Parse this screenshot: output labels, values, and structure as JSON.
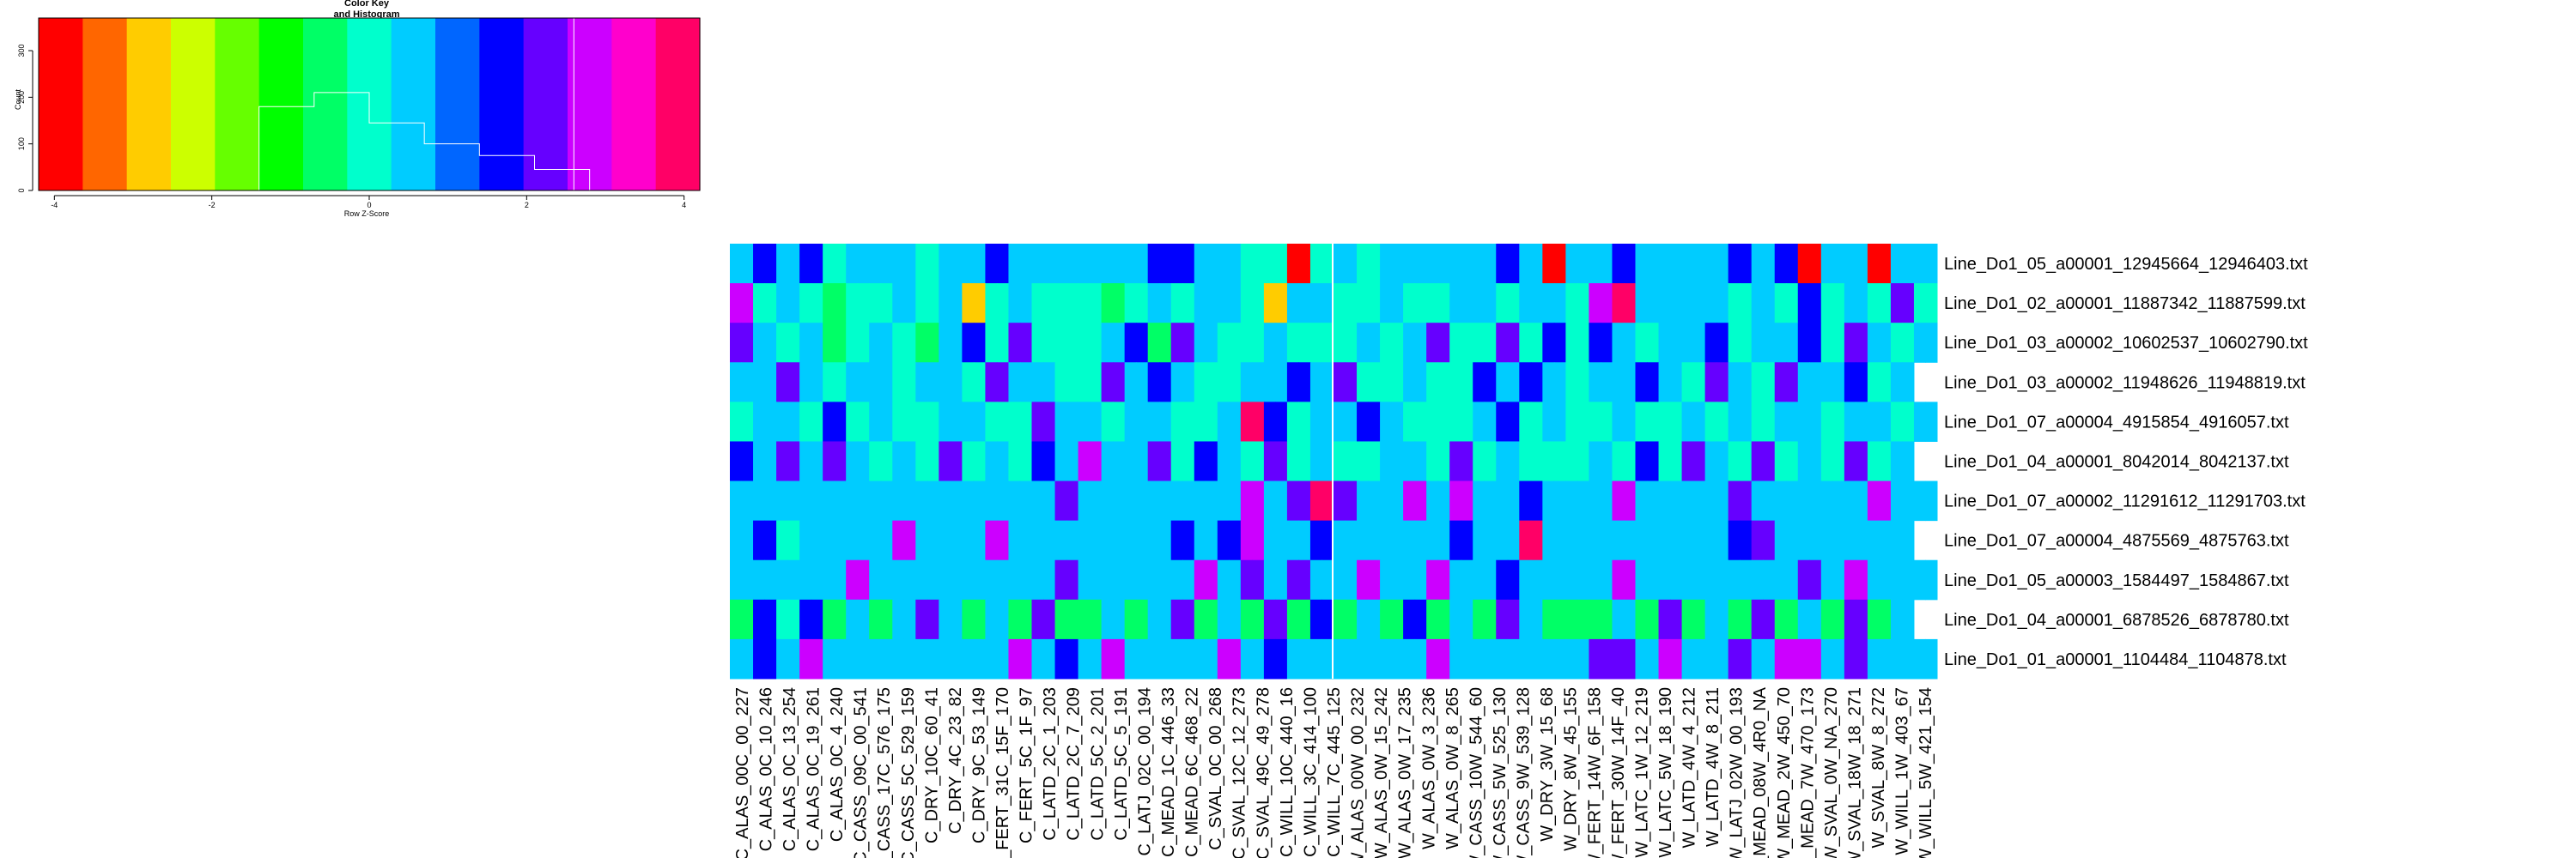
{
  "color_key": {
    "title_line1": "Color Key",
    "title_line2": "and Histogram",
    "xlabel": "Row Z-Score",
    "ylabel": "Count",
    "x_ticks": [
      "-4",
      "-2",
      "0",
      "2",
      "4"
    ],
    "y_ticks": [
      "0",
      "100",
      "200",
      "300"
    ],
    "x_range": [
      -4.2,
      4.2
    ],
    "y_range": [
      0,
      370
    ],
    "histogram": {
      "breaks": [
        -1.4,
        -0.7,
        0,
        0.7,
        1.4,
        2.1,
        2.8
      ],
      "counts": [
        180,
        210,
        145,
        100,
        75,
        45
      ]
    },
    "palette": [
      "#ff0000",
      "#ff6600",
      "#ffcc00",
      "#ccff00",
      "#66ff00",
      "#00ff00",
      "#00ff66",
      "#00ffcc",
      "#00ccff",
      "#0066ff",
      "#0000ff",
      "#6600ff",
      "#cc00ff",
      "#ff00cc",
      "#ff0066"
    ],
    "annotation": ""
  },
  "chart_data": {
    "type": "heatmap",
    "title": "",
    "xlabel": "",
    "ylabel": "",
    "value_range": [
      -4,
      4
    ],
    "rows": [
      "Line_Do1_05_a00001_12945664_12946403.txt",
      "Line_Do1_02_a00001_11887342_11887599.txt",
      "Line_Do1_03_a00002_10602537_10602790.txt",
      "Line_Do1_03_a00002_11948626_11948819.txt",
      "Line_Do1_07_a00004_4915854_4916057.txt",
      "Line_Do1_04_a00001_8042014_8042137.txt",
      "Line_Do1_07_a00002_11291612_11291703.txt",
      "Line_Do1_07_a00004_4875569_4875763.txt",
      "Line_Do1_05_a00003_1584497_1584867.txt",
      "Line_Do1_04_a00001_6878526_6878780.txt",
      "Line_Do1_01_a00001_1104484_1104878.txt"
    ],
    "col_labels": [
      "C_ALAS_00C_00_227",
      "C_ALAS_0C_10_246",
      "C_ALAS_0C_13_254",
      "C_ALAS_0C_19_261",
      "C_ALAS_0C_4_240",
      "C_CASS_09C_00_541",
      "C_CASS_17C_576_175",
      "C_CASS_5C_529_159",
      "C_DRY_10C_60_41",
      "C_DRY_4C_23_82",
      "C_DRY_9C_53_149",
      "C_FERT_31C_15F_170",
      "C_FERT_5C_1F_97",
      "C_LATD_2C_1_203",
      "C_LATD_2C_7_209",
      "C_LATD_5C_2_201",
      "C_LATD_5C_5_191",
      "C_LATJ_02C_00_194",
      "C_MEAD_1C_446_33",
      "C_MEAD_6C_468_22",
      "C_SVAL_0C_00_268",
      "C_SVAL_12C_12_273",
      "C_SVAL_49C_49_278",
      "C_WILL_10C_440_16",
      "C_WILL_3C_414_100",
      "C_WILL_7C_445_125",
      "W_ALAS_00W_00_232",
      "W_ALAS_0W_15_242",
      "W_ALAS_0W_17_235",
      "W_ALAS_0W_3_236",
      "W_ALAS_0W_8_265",
      "W_CASS_10W_544_60",
      "W_CASS_5W_525_130",
      "W_CASS_9W_539_128",
      "W_DRY_3W_15_68",
      "W_DRY_8W_45_155",
      "W_FERT_14W_6F_158",
      "W_FERT_30W_14F_40",
      "W_LATC_1W_12_219",
      "W_LATC_5W_18_190",
      "W_LATD_4W_4_212",
      "W_LATD_4W_8_211",
      "W_LATJ_02W_00_193",
      "W_MEAD_08W_4R0_NA",
      "W_MEAD_2W_450_70",
      "W_MEAD_7W_470_173",
      "W_SVAL_0W_NA_270",
      "W_SVAL_18W_18_271",
      "W_SVAL_8W_8_272",
      "W_WILL_1W_403_67",
      "W_WILL_5W_421_154"
    ],
    "n_cells_per_row": 104,
    "values": [
      [
        0.7,
        0.7,
        1.4,
        1.4,
        0.7,
        0.7,
        1.4,
        1.4,
        0,
        0,
        0.7,
        0.7,
        0.7,
        0.7,
        0.7,
        0.7,
        0,
        0,
        0.7,
        0.7,
        0.7,
        0.7,
        1.4,
        1.4,
        0.7,
        0.7,
        0.7,
        0.7,
        0.7,
        0.7,
        0.7,
        0.7,
        0.7,
        0.7,
        0.7,
        0.7,
        1.4,
        1.4,
        1.4,
        1.4,
        0.7,
        0.7,
        0.7,
        0.7,
        0,
        0,
        0,
        0,
        -4,
        -4,
        0,
        0,
        0.7,
        0.7,
        0,
        0,
        0.7,
        0.7,
        0.7,
        0.7,
        0.7,
        0.7,
        0.7,
        0.7,
        0.7,
        0.7,
        1.4,
        1.4,
        0.7,
        0.7,
        -4,
        -4,
        0.7,
        0.7,
        0.7,
        0.7,
        1.4,
        1.4,
        0.7,
        0.7,
        0.7,
        0.7,
        0.7,
        0.7,
        0.7,
        0.7,
        1.4,
        1.4,
        0.7,
        0.7,
        1.4,
        1.4,
        -4,
        -4,
        0.7,
        0.7,
        0.7,
        0.7,
        -4,
        -4,
        0.7,
        0.7,
        0.7,
        0.7
      ],
      [
        2.8,
        2.8,
        0,
        0,
        0.7,
        0.7,
        0,
        0,
        -0.7,
        -0.7,
        0,
        0,
        0,
        0,
        0.7,
        0.7,
        0,
        0,
        0.7,
        0.7,
        -2.8,
        -2.8,
        0,
        0,
        0.7,
        0.7,
        0,
        0,
        0,
        0,
        0,
        0,
        -0.7,
        -0.7,
        0,
        0,
        0.7,
        0.7,
        0,
        0,
        0.7,
        0.7,
        0.7,
        0.7,
        0,
        0,
        -2.8,
        -2.8,
        0.7,
        0.7,
        0.7,
        0.7,
        0,
        0,
        0,
        0,
        0.7,
        0.7,
        0,
        0,
        0,
        0,
        0.7,
        0.7,
        0.7,
        0.7,
        0,
        0,
        0.7,
        0.7,
        0.7,
        0.7,
        0,
        0,
        2.8,
        2.8,
        3.5,
        3.5,
        0.7,
        0.7,
        0.7,
        0.7,
        0.7,
        0.7,
        0.7,
        0.7,
        0,
        0,
        0.7,
        0.7,
        0,
        0,
        1.4,
        1.4,
        0,
        0,
        0.7,
        0.7,
        0,
        0,
        2.1,
        2.1,
        0,
        0
      ],
      [
        2.1,
        2.1,
        0.7,
        0.7,
        0,
        0,
        0.7,
        0.7,
        -0.7,
        -0.7,
        0,
        0,
        0.7,
        0.7,
        0,
        0,
        -0.7,
        -0.7,
        0.7,
        0.7,
        1.4,
        1.4,
        0,
        0,
        2.1,
        2.1,
        0,
        0,
        0,
        0,
        0,
        0,
        0.7,
        0.7,
        1.4,
        1.4,
        -0.7,
        -0.7,
        2.1,
        2.1,
        0.7,
        0.7,
        0,
        0,
        0,
        0,
        0.7,
        0.7,
        0,
        0,
        0,
        0,
        0,
        0,
        0.7,
        0.7,
        0,
        0,
        0.7,
        0.7,
        2.1,
        2.1,
        0,
        0,
        0,
        0,
        2.1,
        2.1,
        0,
        0,
        1.4,
        1.4,
        0,
        0,
        1.4,
        1.4,
        0.7,
        0.7,
        0,
        0,
        0.7,
        0.7,
        0.7,
        0.7,
        1.4,
        1.4,
        0,
        0,
        0.7,
        0.7,
        0.7,
        0.7,
        1.4,
        1.4,
        0,
        0,
        2.1,
        2.1,
        0.7,
        0.7,
        0,
        0,
        0.7,
        0.7
      ],
      [
        0.7,
        0.7,
        0.7,
        0.7,
        2.1,
        2.1,
        0.7,
        0.7,
        0,
        0,
        0.7,
        0.7,
        0.7,
        0.7,
        0,
        0,
        0.7,
        0.7,
        0.7,
        0.7,
        0,
        0,
        2.1,
        2.1,
        0.7,
        0.7,
        0.7,
        0.7,
        0,
        0,
        0,
        0,
        2.1,
        2.1,
        0.7,
        0.7,
        1.4,
        1.4,
        0.7,
        0.7,
        0,
        0,
        0,
        0,
        0.7,
        0.7,
        0.7,
        0.7,
        1.4,
        1.4,
        0.7,
        0.7,
        2.1,
        2.1,
        0,
        0,
        0,
        0,
        0.7,
        0.7,
        0,
        0,
        0,
        0,
        1.4,
        1.4,
        0.7,
        0.7,
        1.4,
        1.4,
        0.7,
        0.7,
        0,
        0,
        0.7,
        0.7,
        0.7,
        0.7,
        1.4,
        1.4,
        0.7,
        0.7,
        0,
        0,
        2.1,
        2.1,
        0.7,
        0.7,
        0,
        0,
        2.1,
        2.1,
        0.7,
        0.7,
        0.7,
        0.7,
        1.4,
        1.4,
        0,
        0,
        0.7,
        0.7
      ],
      [
        0,
        0,
        0.7,
        0.7,
        0.7,
        0.7,
        0,
        0,
        1.4,
        1.4,
        0,
        0,
        0.7,
        0.7,
        0,
        0,
        0,
        0,
        0.7,
        0.7,
        0.7,
        0.7,
        0,
        0,
        0,
        0,
        2.1,
        2.1,
        0.7,
        0.7,
        0.7,
        0.7,
        0,
        0,
        0.7,
        0.7,
        0.7,
        0.7,
        0,
        0,
        0,
        0,
        0.7,
        0.7,
        3.5,
        3.5,
        1.4,
        1.4,
        0,
        0,
        0.7,
        0.7,
        0.7,
        0.7,
        1.4,
        1.4,
        0.7,
        0.7,
        0,
        0,
        0,
        0,
        0,
        0,
        0.7,
        0.7,
        1.4,
        1.4,
        0,
        0,
        0.7,
        0.7,
        0,
        0,
        0,
        0,
        0.7,
        0.7,
        0,
        0,
        0,
        0,
        0.7,
        0.7,
        0,
        0,
        0.7,
        0.7,
        0,
        0,
        0.7,
        0.7,
        0.7,
        0.7,
        0,
        0,
        0.7,
        0.7,
        0.7,
        0.7,
        0,
        0,
        0.7,
        0.7
      ],
      [
        1.4,
        1.4,
        0.7,
        0.7,
        2.1,
        2.1,
        0.7,
        0.7,
        2.1,
        2.1,
        0.7,
        0.7,
        0,
        0,
        0.7,
        0.7,
        0,
        0,
        2.1,
        2.1,
        0,
        0,
        0.7,
        0.7,
        0,
        0,
        1.4,
        1.4,
        0.7,
        0.7,
        2.8,
        2.8,
        0.7,
        0.7,
        0.7,
        0.7,
        2.1,
        2.1,
        0,
        0,
        1.4,
        1.4,
        0.7,
        0.7,
        0,
        0,
        2.1,
        2.1,
        0,
        0,
        0.7,
        0.7,
        0,
        0,
        0,
        0,
        0.7,
        0.7,
        0.7,
        0.7,
        0,
        0,
        2.1,
        2.1,
        0,
        0,
        0.7,
        0.7,
        0,
        0,
        0,
        0,
        0,
        0,
        0.7,
        0.7,
        0,
        0,
        1.4,
        1.4,
        0,
        0,
        2.1,
        2.1,
        0.7,
        0.7,
        0,
        0,
        2.1,
        2.1,
        0,
        0,
        0.7,
        0.7,
        0,
        0,
        2.1,
        2.1,
        0,
        0,
        0.7,
        0.7
      ],
      [
        0.35,
        0.35,
        0.35,
        0.35,
        0.35,
        0.35,
        0.35,
        0.35,
        0.35,
        0.35,
        0.35,
        0.35,
        0.35,
        0.35,
        0.35,
        0.35,
        0.35,
        0.35,
        0.7,
        0.7,
        0.35,
        0.35,
        0.35,
        0.35,
        0.7,
        0.7,
        0.35,
        0.35,
        2.1,
        2.1,
        0.35,
        0.35,
        0.35,
        0.35,
        0.35,
        0.35,
        0.35,
        0.35,
        0.35,
        0.35,
        0.35,
        0.35,
        0.35,
        0.35,
        2.8,
        2.8,
        0.35,
        0.35,
        2.1,
        2.1,
        3.5,
        3.5,
        2.1,
        2.1,
        0.35,
        0.35,
        0.35,
        0.35,
        2.8,
        2.8,
        0.35,
        0.35,
        2.8,
        2.8,
        0.35,
        0.35,
        0.35,
        0.35,
        1.4,
        1.4,
        0.35,
        0.35,
        0.35,
        0.35,
        0.35,
        0.35,
        2.8,
        2.8,
        0.35,
        0.35,
        0.35,
        0.35,
        0.35,
        0.35,
        0.35,
        0.35,
        2.1,
        2.1,
        0.35,
        0.35,
        0.35,
        0.35,
        0.35,
        0.35,
        0.35,
        0.35,
        0.35,
        0.35,
        2.8,
        2.8,
        0.35,
        0.35,
        0.35,
        0.35
      ],
      [
        0.7,
        0.7,
        1.4,
        1.4,
        0,
        0,
        0.7,
        0.7,
        0.7,
        0.7,
        0.35,
        0.35,
        0.35,
        0.35,
        2.8,
        2.8,
        0.35,
        0.35,
        0.7,
        0.7,
        0.35,
        0.35,
        2.8,
        2.8,
        0.7,
        0.7,
        0.35,
        0.35,
        0.35,
        0.35,
        0.7,
        0.7,
        0.35,
        0.35,
        0.35,
        0.35,
        0.7,
        0.7,
        1.4,
        1.4,
        0.35,
        0.35,
        1.4,
        1.4,
        2.8,
        2.8,
        0.35,
        0.35,
        0.35,
        0.35,
        1.4,
        1.4,
        0.35,
        0.35,
        0.7,
        0.7,
        0.35,
        0.35,
        0.35,
        0.35,
        0.35,
        0.35,
        1.4,
        1.4,
        0.35,
        0.35,
        0.7,
        0.7,
        3.5,
        3.5,
        0.35,
        0.35,
        0.35,
        0.35,
        0.35,
        0.35,
        0.35,
        0.35,
        0.35,
        0.35,
        0.35,
        0.35,
        0.35,
        0.35,
        0.35,
        0.35,
        1.4,
        1.4,
        2.1,
        2.1,
        0.35,
        0.35,
        0.35,
        0.35,
        0.35,
        0.35,
        0.35,
        0.35,
        0.7,
        0.7,
        0.35,
        0.35
      ],
      [
        0.35,
        0.35,
        0.35,
        0.35,
        0.7,
        0.7,
        0.35,
        0.35,
        0.35,
        0.35,
        2.8,
        2.8,
        0.35,
        0.35,
        0.35,
        0.35,
        0.35,
        0.35,
        0.7,
        0.7,
        0.35,
        0.35,
        0.35,
        0.35,
        0.35,
        0.35,
        0.35,
        0.35,
        2.1,
        2.1,
        0.35,
        0.35,
        0.35,
        0.35,
        0.35,
        0.35,
        0.35,
        0.35,
        0.35,
        0.35,
        2.8,
        2.8,
        0.35,
        0.35,
        2.1,
        2.1,
        0.35,
        0.35,
        2.1,
        2.1,
        0.35,
        0.35,
        0.35,
        0.35,
        2.8,
        2.8,
        0.35,
        0.35,
        0.35,
        0.35,
        2.8,
        2.8,
        0.35,
        0.35,
        0.35,
        0.35,
        1.4,
        1.4,
        0.35,
        0.35,
        0.35,
        0.35,
        0.35,
        0.35,
        0.35,
        0.35,
        2.8,
        2.8,
        0.35,
        0.35,
        0.35,
        0.35,
        0.35,
        0.35,
        0.35,
        0.35,
        0.35,
        0.35,
        0.35,
        0.35,
        0.35,
        0.35,
        2.1,
        2.1,
        0.35,
        0.35,
        2.8,
        2.8,
        0.35,
        0.35,
        0.35,
        0.35,
        0.35,
        0.35
      ],
      [
        -0.35,
        -0.35,
        1.4,
        1.4,
        0,
        0,
        1.4,
        1.4,
        -0.35,
        -0.35,
        0.7,
        0.7,
        -0.35,
        -0.35,
        0.7,
        0.7,
        2.1,
        2.1,
        0.7,
        0.7,
        -0.35,
        -0.35,
        0.7,
        0.7,
        -0.35,
        -0.35,
        2.1,
        2.1,
        -0.35,
        -0.35,
        -0.35,
        -0.35,
        0.7,
        0.7,
        -0.35,
        -0.35,
        0.7,
        0.7,
        2.1,
        2.1,
        -0.35,
        -0.35,
        0.7,
        0.7,
        -0.35,
        -0.35,
        2.1,
        2.1,
        -0.35,
        -0.35,
        1.4,
        1.4,
        -0.35,
        -0.35,
        0.7,
        0.7,
        -0.35,
        -0.35,
        1.4,
        1.4,
        -0.35,
        -0.35,
        0.7,
        0.7,
        -0.35,
        -0.35,
        2.1,
        2.1,
        0.7,
        0.7,
        -0.35,
        -0.35,
        -0.35,
        -0.35,
        -0.35,
        -0.35,
        0.7,
        0.7,
        -0.35,
        -0.35,
        2.1,
        2.1,
        -0.35,
        -0.35,
        0.7,
        0.7,
        -0.35,
        -0.35,
        2.1,
        2.1,
        -0.35,
        -0.35,
        0.7,
        0.7,
        -0.35,
        -0.35,
        2.1,
        2.1,
        -0.35,
        -0.35,
        0.7,
        0.7
      ],
      [
        0.7,
        0.7,
        1.4,
        1.4,
        0.7,
        0.7,
        2.8,
        2.8,
        0.35,
        0.35,
        0.35,
        0.35,
        0.35,
        0.35,
        0.35,
        0.35,
        0.35,
        0.35,
        0.35,
        0.35,
        0.35,
        0.35,
        0.35,
        0.35,
        2.8,
        2.8,
        0.35,
        0.35,
        1.4,
        1.4,
        0.7,
        0.7,
        2.8,
        2.8,
        0.35,
        0.35,
        0.35,
        0.35,
        0.35,
        0.35,
        0.35,
        0.35,
        2.8,
        2.8,
        0.35,
        0.35,
        1.4,
        1.4,
        0.35,
        0.35,
        0.35,
        0.35,
        0.35,
        0.35,
        0.35,
        0.35,
        0.35,
        0.35,
        0.35,
        0.35,
        2.8,
        2.8,
        0.35,
        0.35,
        0.35,
        0.35,
        0.35,
        0.35,
        0.35,
        0.35,
        0.35,
        0.35,
        0.35,
        0.35,
        2.1,
        2.1,
        2.1,
        2.1,
        0.35,
        0.35,
        2.8,
        2.8,
        0.35,
        0.35,
        0.35,
        0.35,
        2.1,
        2.1,
        0.35,
        0.35,
        2.8,
        2.8,
        2.8,
        2.8,
        0.35,
        0.35,
        2.1,
        2.1,
        0.35,
        0.35,
        0.35,
        0.35,
        0.7,
        0.7
      ]
    ]
  }
}
